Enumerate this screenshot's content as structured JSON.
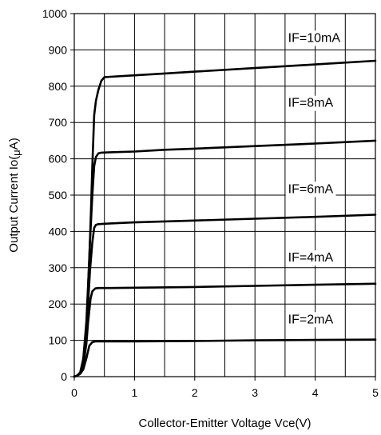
{
  "chart_data": {
    "type": "line",
    "title": "",
    "xlabel": "Collector-Emitter Voltage Vce(V)",
    "ylabel_parts": [
      "Output Current Io(",
      "μ",
      "A)"
    ],
    "xlim": [
      0,
      5
    ],
    "ylim": [
      0,
      1000
    ],
    "x_ticks": [
      0,
      1,
      2,
      3,
      4,
      5
    ],
    "y_ticks": [
      0,
      100,
      200,
      300,
      400,
      500,
      600,
      700,
      800,
      900,
      1000
    ],
    "x_tick_labels": [
      "0",
      "1",
      "2",
      "3",
      "4",
      "5"
    ],
    "y_tick_labels": [
      "0",
      "100",
      "200",
      "300",
      "400",
      "500",
      "600",
      "700",
      "800",
      "900",
      "1000"
    ],
    "x_minor_step": 0.5,
    "y_grid_step": 100,
    "grid": true,
    "series": [
      {
        "name": "IF=2mA",
        "x": [
          0,
          0.05,
          0.1,
          0.15,
          0.2,
          0.25,
          0.3,
          0.35,
          0.4,
          0.6,
          1,
          2,
          3,
          4,
          5
        ],
        "y": [
          0,
          3,
          8,
          20,
          50,
          85,
          95,
          97,
          97,
          97,
          97,
          98,
          100,
          101,
          102
        ]
      },
      {
        "name": "IF=4mA",
        "x": [
          0,
          0.05,
          0.1,
          0.15,
          0.2,
          0.23,
          0.27,
          0.3,
          0.35,
          0.4,
          0.6,
          1,
          2,
          3,
          4,
          5
        ],
        "y": [
          0,
          3,
          10,
          30,
          90,
          150,
          215,
          235,
          243,
          244,
          244,
          245,
          247,
          250,
          253,
          256
        ]
      },
      {
        "name": "IF=6mA",
        "x": [
          0,
          0.05,
          0.1,
          0.15,
          0.2,
          0.23,
          0.26,
          0.3,
          0.33,
          0.36,
          0.4,
          0.6,
          1,
          2,
          3,
          4,
          5
        ],
        "y": [
          0,
          3,
          12,
          40,
          110,
          200,
          290,
          370,
          410,
          418,
          420,
          422,
          425,
          430,
          435,
          440,
          446
        ]
      },
      {
        "name": "IF=8mA",
        "x": [
          0,
          0.05,
          0.1,
          0.15,
          0.2,
          0.23,
          0.26,
          0.3,
          0.33,
          0.36,
          0.4,
          0.45,
          0.6,
          1,
          1.5,
          2,
          3,
          4,
          5
        ],
        "y": [
          0,
          3,
          12,
          45,
          130,
          250,
          370,
          500,
          580,
          605,
          615,
          617,
          618,
          620,
          625,
          628,
          635,
          642,
          650
        ]
      },
      {
        "name": "IF=10mA",
        "x": [
          0,
          0.05,
          0.1,
          0.15,
          0.2,
          0.25,
          0.28,
          0.3,
          0.33,
          0.36,
          0.4,
          0.45,
          0.5,
          0.6,
          1,
          1.5,
          2,
          3,
          4,
          5
        ],
        "y": [
          0,
          3,
          12,
          50,
          150,
          320,
          470,
          580,
          720,
          760,
          790,
          815,
          825,
          826,
          830,
          835,
          840,
          850,
          860,
          870
        ]
      }
    ],
    "curve_labels": [
      {
        "text": "IF=10mA",
        "x": 3.55,
        "y": 922
      },
      {
        "text": "IF=8mA",
        "x": 3.55,
        "y": 743
      },
      {
        "text": "IF=6mA",
        "x": 3.55,
        "y": 506
      },
      {
        "text": "IF=4mA",
        "x": 3.55,
        "y": 317
      },
      {
        "text": "IF=2mA",
        "x": 3.55,
        "y": 147
      }
    ]
  }
}
